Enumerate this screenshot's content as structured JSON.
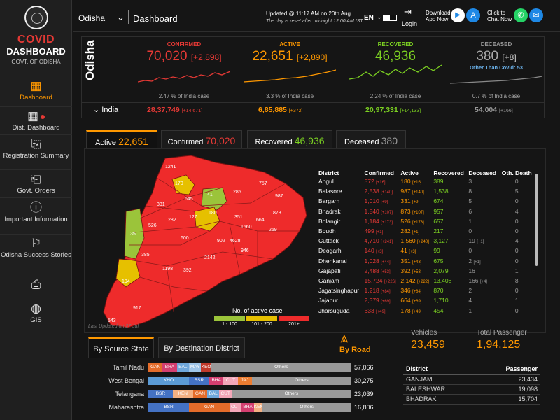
{
  "sidebar": {
    "brand_line1": "COVID",
    "brand_line2": "DASHBOARD",
    "brand_line3": "GOVT. OF ODISHA",
    "items": [
      {
        "label": "Dashboard",
        "icon": "map-icon"
      },
      {
        "label": "Dist. Dashboard",
        "icon": "map-pin-icon"
      },
      {
        "label": "Registration Summary",
        "icon": "document-icon"
      },
      {
        "label": "Govt. Orders",
        "icon": "document-stack-icon"
      },
      {
        "label": "Important Information",
        "icon": "info-icon"
      },
      {
        "label": "Odisha Success Stories",
        "icon": "success-icon"
      },
      {
        "label": "",
        "icon": "clipboard-icon"
      },
      {
        "label": "GIS",
        "icon": "globe-icon"
      }
    ]
  },
  "topbar": {
    "state": "Odisha",
    "title": "Dashboard",
    "updated_line1": "Updated @ 11:17 AM on 20th Aug",
    "updated_line2": "The day is reset after midnight 12:00 AM IST",
    "lang": "EN",
    "login": "Login",
    "download_label": "Download App Now",
    "chat_label": "Click to Chat Now"
  },
  "summary": {
    "region": "Odisha",
    "confirmed": {
      "label": "CONFIRMED",
      "value": "70,020",
      "delta": "[+2,898]",
      "pct": "2.47 % of India case"
    },
    "active": {
      "label": "ACTIVE",
      "value": "22,651",
      "delta": "[+2,890]",
      "pct": "3.3 % of India case"
    },
    "recovered": {
      "label": "RECOVERED",
      "value": "46,936",
      "delta": "",
      "pct": "2.24 % of India case"
    },
    "deceased": {
      "label": "DECEASED",
      "value": "380",
      "delta": "[+8]",
      "note": "Other Than Covid: 53",
      "pct": "0.7 % of India case"
    },
    "india": {
      "label": "India",
      "confirmed": "28,37,749",
      "confirmed_d": "[+14,671]",
      "active": "6,85,885",
      "active_d": "[+372]",
      "recovered": "20,97,331",
      "recovered_d": "[+14,133]",
      "deceased": "54,004",
      "deceased_d": "[+166]"
    }
  },
  "tabs": [
    {
      "label": "Active",
      "value": "22,651"
    },
    {
      "label": "Confirmed",
      "value": "70,020"
    },
    {
      "label": "Recovered",
      "value": "46,936"
    },
    {
      "label": "Deceased",
      "value": "380"
    }
  ],
  "map": {
    "labels": [
      "1241",
      "170",
      "41",
      "645",
      "757",
      "285",
      "987",
      "331",
      "180",
      "873",
      "127",
      "282",
      "351",
      "664",
      "1560",
      "259",
      "526",
      "4628",
      "902",
      "600",
      "946",
      "35",
      "385",
      "2142",
      "1198",
      "392",
      "194",
      "917",
      "543"
    ],
    "legend_title": "No. of active case",
    "legend": [
      "1 - 100",
      "101 - 200",
      "201+"
    ],
    "last_updated": "Last Updated on 27 Jul",
    "colors": {
      "high": "#ee2b2b",
      "mid": "#e6c000",
      "low": "#9bc43a"
    }
  },
  "district_table": {
    "headers": [
      "District",
      "Confirmed",
      "Active",
      "Recovered",
      "Deceased",
      "Oth. Death"
    ],
    "rows": [
      {
        "d": "Angul",
        "c": "572",
        "cd": "[+16]",
        "a": "180",
        "ad": "[+16]",
        "r": "389",
        "de": "3",
        "dd": "",
        "o": "0"
      },
      {
        "d": "Balasore",
        "c": "2,538",
        "cd": "[+140]",
        "a": "987",
        "ad": "[+140]",
        "r": "1,538",
        "de": "8",
        "dd": "",
        "o": "5"
      },
      {
        "d": "Bargarh",
        "c": "1,010",
        "cd": "[+9]",
        "a": "331",
        "ad": "[+9]",
        "r": "674",
        "de": "5",
        "dd": "",
        "o": "0"
      },
      {
        "d": "Bhadrak",
        "c": "1,840",
        "cd": "[+107]",
        "a": "873",
        "ad": "[+107]",
        "r": "957",
        "de": "6",
        "dd": "",
        "o": "4"
      },
      {
        "d": "Bolangir",
        "c": "1,184",
        "cd": "[+173]",
        "a": "526",
        "ad": "[+173]",
        "r": "657",
        "de": "1",
        "dd": "",
        "o": "0"
      },
      {
        "d": "Boudh",
        "c": "499",
        "cd": "[+1]",
        "a": "282",
        "ad": "[+1]",
        "r": "217",
        "de": "0",
        "dd": "",
        "o": "0"
      },
      {
        "d": "Cuttack",
        "c": "4,710",
        "cd": "[+241]",
        "a": "1,560",
        "ad": "[+240]",
        "r": "3,127",
        "de": "19",
        "dd": "[+1]",
        "o": "4"
      },
      {
        "d": "Deogarh",
        "c": "140",
        "cd": "[+3]",
        "a": "41",
        "ad": "[+3]",
        "r": "99",
        "de": "0",
        "dd": "",
        "o": "0"
      },
      {
        "d": "Dhenkanal",
        "c": "1,028",
        "cd": "[+44]",
        "a": "351",
        "ad": "[+43]",
        "r": "675",
        "de": "2",
        "dd": "[+1]",
        "o": "0"
      },
      {
        "d": "Gajapati",
        "c": "2,488",
        "cd": "[+53]",
        "a": "392",
        "ad": "[+53]",
        "r": "2,079",
        "de": "16",
        "dd": "",
        "o": "1"
      },
      {
        "d": "Ganjam",
        "c": "15,724",
        "cd": "[+226]",
        "a": "2,142",
        "ad": "[+222]",
        "r": "13,408",
        "de": "166",
        "dd": "[+4]",
        "o": "8"
      },
      {
        "d": "Jagatsinghapur",
        "c": "1,218",
        "cd": "[+84]",
        "a": "346",
        "ad": "[+84]",
        "r": "870",
        "de": "2",
        "dd": "",
        "o": "0"
      },
      {
        "d": "Jajapur",
        "c": "2,379",
        "cd": "[+69]",
        "a": "664",
        "ad": "[+69]",
        "r": "1,710",
        "de": "4",
        "dd": "",
        "o": "1"
      },
      {
        "d": "Jharsuguda",
        "c": "633",
        "cd": "[+49]",
        "a": "178",
        "ad": "[+49]",
        "r": "454",
        "de": "1",
        "dd": "",
        "o": "0"
      }
    ]
  },
  "travel": {
    "tab_source": "By Source State",
    "tab_destination": "By Destination District",
    "mode": "By Road",
    "vehicles_label": "Vehicles",
    "vehicles": "23,459",
    "passenger_label": "Total Passenger",
    "passengers": "1,94,125",
    "states": [
      {
        "name": "Tamil Nadu",
        "total": "57,066",
        "segs": [
          [
            "GAN",
            "#e46c2a",
            0.07
          ],
          [
            "BHA",
            "#d43f70",
            0.07
          ],
          [
            "BAL",
            "#6fa8dc",
            0.06
          ],
          [
            "MAY",
            "#9fc5e8",
            0.06
          ],
          [
            "KEO",
            "#c0392b",
            0.05
          ],
          [
            "Others",
            "#999",
            0.69
          ]
        ]
      },
      {
        "name": "West Bengal",
        "total": "30,275",
        "segs": [
          [
            "KHO",
            "#5b9bd5",
            0.2
          ],
          [
            "BSR",
            "#4472c4",
            0.1
          ],
          [
            "BHA",
            "#d43f70",
            0.07
          ],
          [
            "CUT",
            "#f4a7b9",
            0.07
          ],
          [
            "JAJ",
            "#ed7d31",
            0.07
          ],
          [
            "Others",
            "#999",
            0.49
          ]
        ]
      },
      {
        "name": "Telangana",
        "total": "23,039",
        "segs": [
          [
            "BSR",
            "#4472c4",
            0.12
          ],
          [
            "KEN",
            "#f4b183",
            0.1
          ],
          [
            "GAN",
            "#e46c2a",
            0.07
          ],
          [
            "BAL",
            "#6fa8dc",
            0.06
          ],
          [
            "CUT",
            "#f4a7b9",
            0.06
          ],
          [
            "Others",
            "#999",
            0.59
          ]
        ]
      },
      {
        "name": "Maharashtra",
        "total": "16,806",
        "segs": [
          [
            "BSR",
            "#4472c4",
            0.2
          ],
          [
            "GAN",
            "#e46c2a",
            0.2
          ],
          [
            "CUT",
            "#f4a7b9",
            0.06
          ],
          [
            "BHA",
            "#d43f70",
            0.06
          ],
          [
            "KEN",
            "#f4b183",
            0.04
          ],
          [
            "Others",
            "#999",
            0.44
          ]
        ]
      }
    ],
    "passenger_table": {
      "headers": [
        "District",
        "Passenger"
      ],
      "rows": [
        {
          "d": "GANJAM",
          "p": "23,434"
        },
        {
          "d": "BALESHWAR",
          "p": "19,098"
        },
        {
          "d": "BHADRAK",
          "p": "15,704"
        }
      ]
    }
  }
}
